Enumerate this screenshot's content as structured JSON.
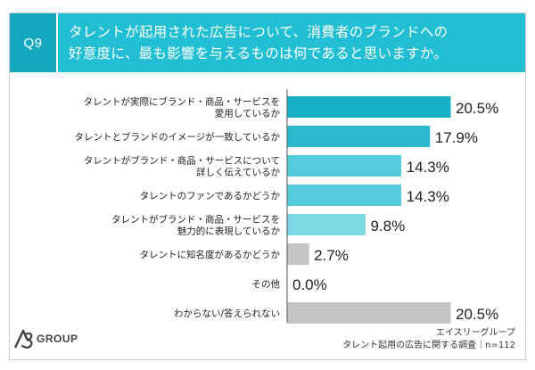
{
  "question": {
    "number": "Q9",
    "text": "タレントが起用された広告について、消費者のブランドへの\n好意度に、最も影響を与えるものは何であると思いますか。"
  },
  "chart_data": {
    "type": "bar",
    "orientation": "horizontal",
    "categories": [
      "タレントが実際にブランド・商品・サービスを\n愛用しているか",
      "タレントとブランドのイメージが一致しているか",
      "タレントがブランド・商品・サービスについて\n詳しく伝えているか",
      "タレントのファンであるかどうか",
      "タレントがブランド・商品・サービスを\n魅力的に表現しているか",
      "タレントに知名度があるかどうか",
      "その他",
      "わからない/答えられない"
    ],
    "values": [
      20.5,
      17.9,
      14.3,
      14.3,
      9.8,
      2.7,
      0.0,
      20.5
    ],
    "value_labels": [
      "20.5%",
      "17.9%",
      "14.3%",
      "14.3%",
      "9.8%",
      "2.7%",
      "0.0%",
      "20.5%"
    ],
    "bar_colors": [
      "#16b0c6",
      "#2ab9cd",
      "#55cbdc",
      "#55cbdc",
      "#7dd8e5",
      "#c4c4c4",
      "#c4c4c4",
      "#c4c4c4"
    ],
    "xlim": [
      0,
      20.5
    ]
  },
  "footer": {
    "logo_text": "GROUP",
    "source_line1": "エイスリーグループ",
    "source_line2": "タレント起用の広告に関する調査｜n=112"
  },
  "colors": {
    "accent": "#22bfd4",
    "accent_dark": "#12a7bd",
    "axis": "#555555"
  }
}
